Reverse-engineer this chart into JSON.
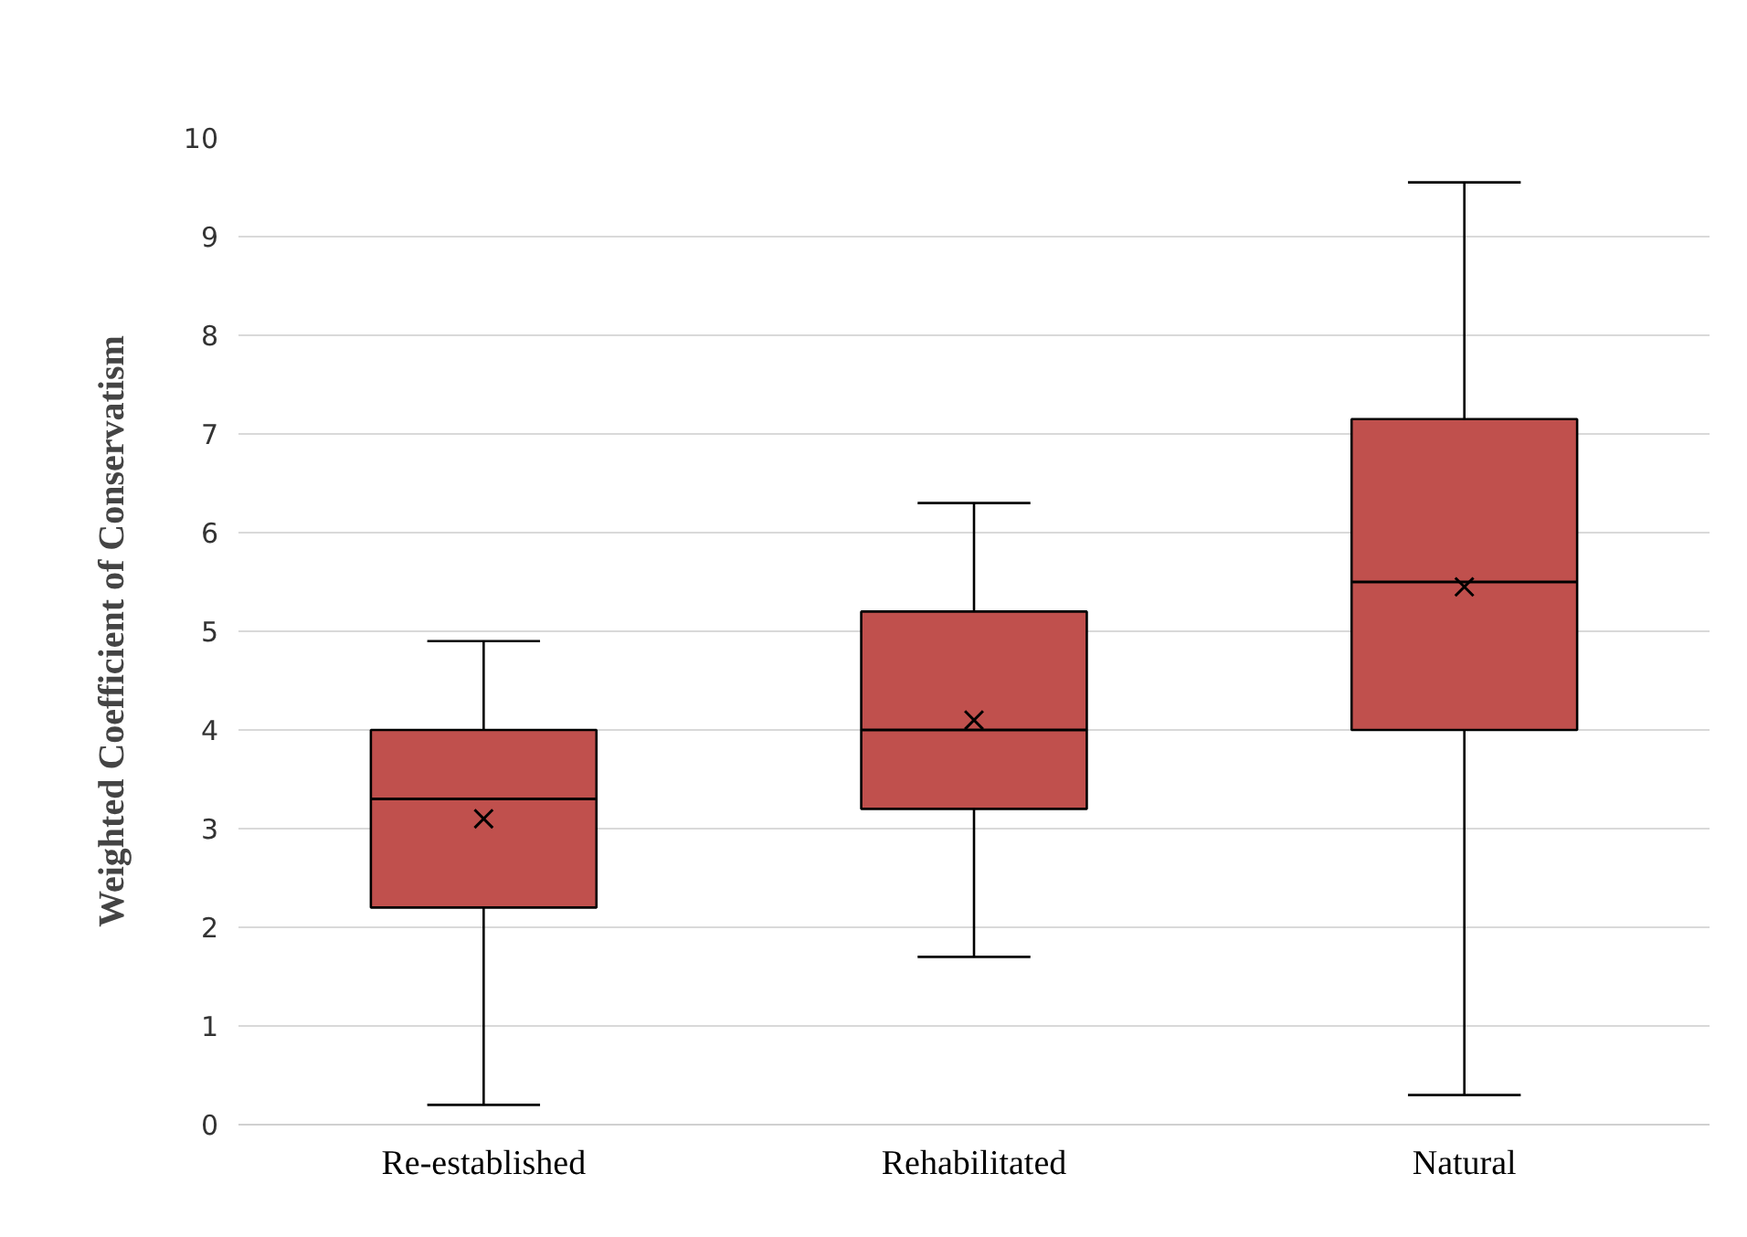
{
  "chart_data": {
    "type": "box",
    "ylabel": "Weighted Coefficient of Conservatism",
    "categories": [
      "Re-established",
      "Rehabilitated",
      "Natural"
    ],
    "color": "#c0504d",
    "ylim": [
      0,
      10
    ],
    "yticks": [
      0,
      1,
      2,
      3,
      4,
      5,
      6,
      7,
      8,
      9,
      10
    ],
    "grid": "y",
    "boxes": [
      {
        "low": 0.2,
        "q1": 2.2,
        "median": 3.3,
        "q3": 4.0,
        "high": 4.9,
        "mean": 3.1
      },
      {
        "low": 1.7,
        "q1": 3.2,
        "median": 4.0,
        "q3": 5.2,
        "high": 6.3,
        "mean": 4.1
      },
      {
        "low": 0.3,
        "q1": 4.0,
        "median": 5.5,
        "q3": 7.15,
        "high": 9.55,
        "mean": 5.45
      }
    ]
  }
}
